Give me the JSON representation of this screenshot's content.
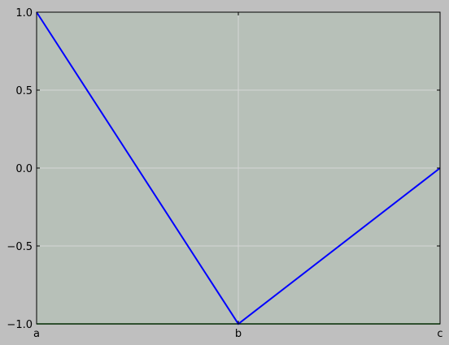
{
  "chart_data": {
    "type": "line",
    "categories": [
      "a",
      "b",
      "c"
    ],
    "series": [
      {
        "values": [
          1.0,
          -1.0,
          0.0
        ],
        "color": "#0000ff"
      },
      {
        "values": [
          -1.0,
          -1.0,
          -1.0
        ],
        "color": "#008000"
      }
    ],
    "ylim": [
      -1.0,
      1.0
    ],
    "yticks": [
      "1.0",
      "0.5",
      "0.0",
      "−0.5",
      "−1.0"
    ],
    "ytick_values": [
      1.0,
      0.5,
      0.0,
      -0.5,
      -1.0
    ],
    "grid": true,
    "colors": {
      "figure_bg": "#bfbfbf",
      "plot_bg": "#b7c0b8",
      "grid": "#d6d6d6"
    }
  }
}
